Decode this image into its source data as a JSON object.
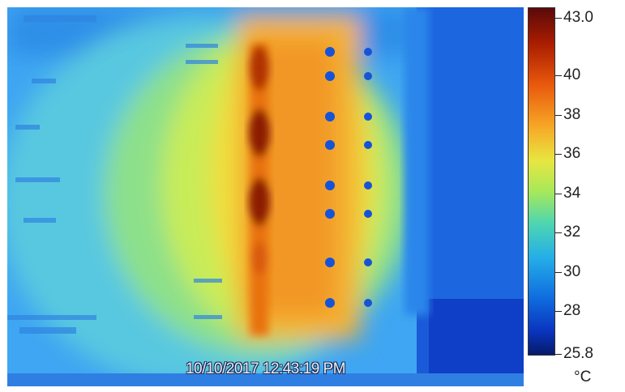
{
  "thermal_image": {
    "timestamp": "10/10/2017 12:43:19 PM"
  },
  "color_scale": {
    "max": "43.0",
    "min": "25.8",
    "unit": "°C",
    "ticks": [
      "43.0",
      "40",
      "38",
      "36",
      "34",
      "32",
      "30",
      "28",
      "25.8"
    ]
  }
}
